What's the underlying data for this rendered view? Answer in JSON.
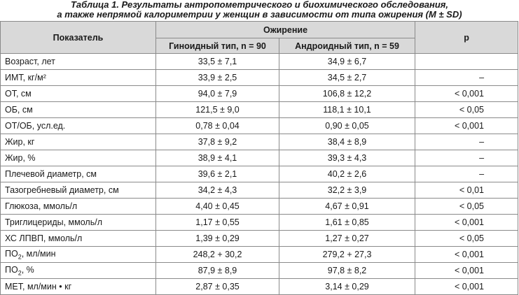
{
  "caption": {
    "line1": "Таблица 1. Результаты антропометрического и биохимического обследования,",
    "line2": "а также непрямой калориметрии у женщин в зависимости от типа ожирения (M ± SD)"
  },
  "headers": {
    "indicator": "Показатель",
    "obesity": "Ожирение",
    "gynoid": "Гиноидный тип, n = 90",
    "android": "Андроидный тип, n = 59",
    "p": "р"
  },
  "rows": [
    {
      "name": "Возраст, лет",
      "sub": "",
      "name_tail": "",
      "gynoid": "33,5 ± 7,1",
      "android": "34,9 ± 6,7",
      "p": ""
    },
    {
      "name": "ИМТ, кг/м²",
      "sub": "",
      "name_tail": "",
      "gynoid": "33,9 ± 2,5",
      "android": "34,5 ± 2,7",
      "p": "–"
    },
    {
      "name": "ОТ, см",
      "sub": "",
      "name_tail": "",
      "gynoid": "94,0 ± 7,9",
      "android": "106,8 ± 12,2",
      "p": "< 0,001"
    },
    {
      "name": "ОБ, см",
      "sub": "",
      "name_tail": "",
      "gynoid": "121,5 ± 9,0",
      "android": "118,1 ± 10,1",
      "p": "< 0,05"
    },
    {
      "name": "ОТ/ОБ, усл.ед.",
      "sub": "",
      "name_tail": "",
      "gynoid": "0,78 ± 0,04",
      "android": "0,90 ± 0,05",
      "p": "< 0,001"
    },
    {
      "name": "Жир, кг",
      "sub": "",
      "name_tail": "",
      "gynoid": "37,8 ± 9,2",
      "android": "38,4 ± 8,9",
      "p": "–"
    },
    {
      "name": "Жир, %",
      "sub": "",
      "name_tail": "",
      "gynoid": "38,9 ± 4,1",
      "android": "39,3 ± 4,3",
      "p": "–"
    },
    {
      "name": "Плечевой диаметр, см",
      "sub": "",
      "name_tail": "",
      "gynoid": "39,6 ± 2,1",
      "android": "40,2 ± 2,6",
      "p": "–"
    },
    {
      "name": "Тазогребневый диаметр, см",
      "sub": "",
      "name_tail": "",
      "gynoid": "34,2 ± 4,3",
      "android": "32,2 ± 3,9",
      "p": "< 0,01"
    },
    {
      "name": "Глюкоза, ммоль/л",
      "sub": "",
      "name_tail": "",
      "gynoid": "4,40 ± 0,45",
      "android": "4,67 ± 0,91",
      "p": "< 0,05"
    },
    {
      "name": "Триглицериды, ммоль/л",
      "sub": "",
      "name_tail": "",
      "gynoid": "1,17 ± 0,55",
      "android": "1,61 ± 0,85",
      "p": "< 0,001"
    },
    {
      "name": "ХС ЛПВП, ммоль/л",
      "sub": "",
      "name_tail": "",
      "gynoid": "1,39 ± 0,29",
      "android": "1,27 ± 0,27",
      "p": "< 0,05"
    },
    {
      "name": "ПО",
      "sub": "2",
      "name_tail": ", мл/мин",
      "gynoid": "248,2 + 30,2",
      "android": "279,2 + 27,3",
      "p": "< 0,001"
    },
    {
      "name": "ПО",
      "sub": "2",
      "name_tail": ", %",
      "gynoid": "87,9 ± 8,9",
      "android": "97,8 ± 8,2",
      "p": "< 0,001"
    },
    {
      "name": "МЕТ, мл/мин • кг",
      "sub": "",
      "name_tail": "",
      "gynoid": "2,87 ± 0,35",
      "android": "3,14 ± 0,29",
      "p": "< 0,001"
    }
  ]
}
